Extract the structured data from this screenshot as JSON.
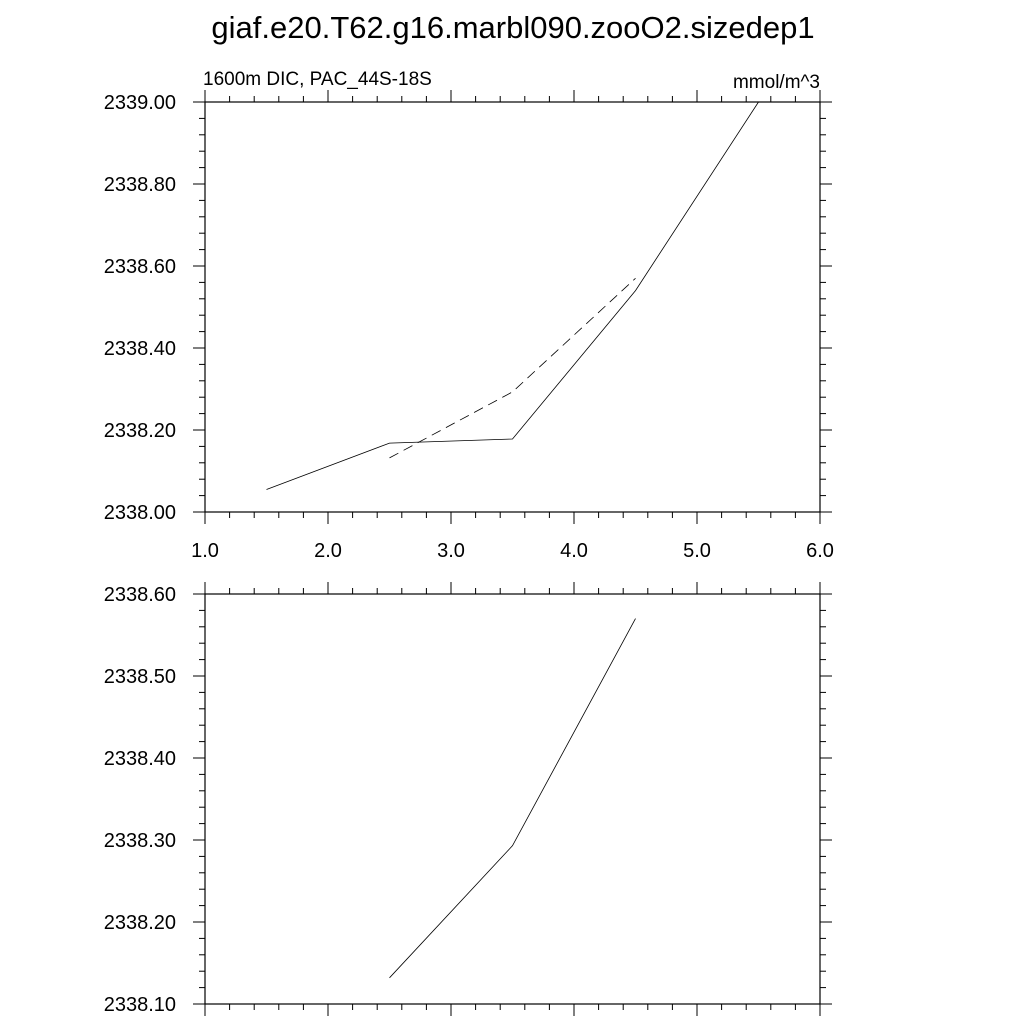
{
  "title": "giaf.e20.T62.g16.marbl090.zooO2.sizedep1",
  "chart_data": [
    {
      "type": "line",
      "left_string": "1600m DIC, PAC_44S-18S",
      "right_string": "mmol/m^3",
      "xlim": [
        1.0,
        6.0
      ],
      "x_ticks": [
        1.0,
        2.0,
        3.0,
        4.0,
        5.0,
        6.0
      ],
      "x_tick_labels": [
        "1.0",
        "2.0",
        "3.0",
        "4.0",
        "5.0",
        "6.0"
      ],
      "ylim": [
        2338.0,
        2339.0
      ],
      "y_ticks": [
        2338.0,
        2338.2,
        2338.4,
        2338.6,
        2338.8,
        2339.0
      ],
      "y_tick_labels": [
        "2338.00",
        "2338.20",
        "2338.40",
        "2338.60",
        "2338.80",
        "2339.00"
      ],
      "series": [
        {
          "style": "solid",
          "x": [
            1.5,
            2.5,
            3.5,
            4.5,
            5.5
          ],
          "y": [
            2338.055,
            2338.168,
            2338.178,
            2338.54,
            2339.0
          ]
        },
        {
          "style": "dashed",
          "x": [
            2.5,
            3.5,
            4.5
          ],
          "y": [
            2338.132,
            2338.293,
            2338.57
          ]
        }
      ]
    },
    {
      "type": "line",
      "xlim": [
        1.0,
        6.0
      ],
      "x_ticks": [
        1.0,
        2.0,
        3.0,
        4.0,
        5.0,
        6.0
      ],
      "ylim": [
        2338.1,
        2338.6
      ],
      "y_ticks": [
        2338.1,
        2338.2,
        2338.3,
        2338.4,
        2338.5,
        2338.6
      ],
      "y_tick_labels": [
        "2338.10",
        "2338.20",
        "2338.30",
        "2338.40",
        "2338.50",
        "2338.60"
      ],
      "series": [
        {
          "style": "solid",
          "x": [
            2.5,
            3.5,
            4.5
          ],
          "y": [
            2338.132,
            2338.293,
            2338.57
          ]
        }
      ]
    }
  ]
}
